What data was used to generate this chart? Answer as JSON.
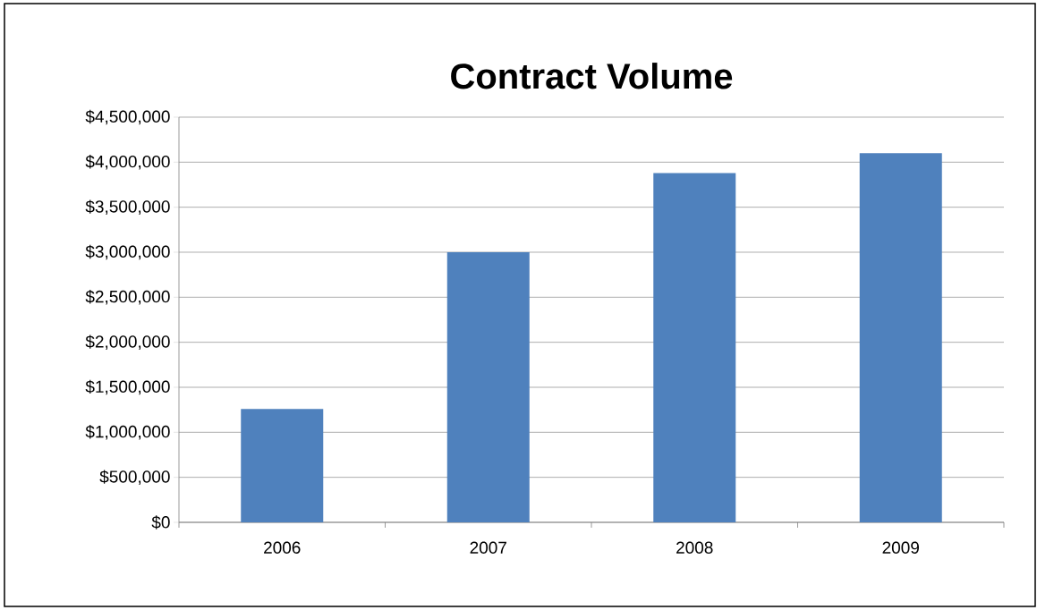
{
  "chart_data": {
    "type": "bar",
    "title": "Contract Volume",
    "categories": [
      "2006",
      "2007",
      "2008",
      "2009"
    ],
    "values": [
      1260000,
      3000000,
      3880000,
      4100000
    ],
    "color": "#4f81bd",
    "ylim": [
      0,
      4500000
    ],
    "yticks": [
      {
        "value": 0,
        "label": "$0"
      },
      {
        "value": 500000,
        "label": "$500,000"
      },
      {
        "value": 1000000,
        "label": "$1,000,000"
      },
      {
        "value": 1500000,
        "label": "$1,500,000"
      },
      {
        "value": 2000000,
        "label": "$2,000,000"
      },
      {
        "value": 2500000,
        "label": "$2,500,000"
      },
      {
        "value": 3000000,
        "label": "$3,000,000"
      },
      {
        "value": 3500000,
        "label": "$3,500,000"
      },
      {
        "value": 4000000,
        "label": "$4,000,000"
      },
      {
        "value": 4500000,
        "label": "$4,500,000"
      }
    ],
    "grid": "y"
  }
}
